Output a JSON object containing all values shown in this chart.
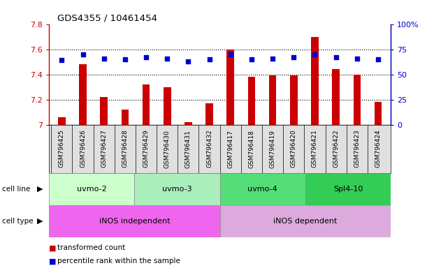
{
  "title": "GDS4355 / 10461454",
  "samples": [
    "GSM796425",
    "GSM796426",
    "GSM796427",
    "GSM796428",
    "GSM796429",
    "GSM796430",
    "GSM796431",
    "GSM796432",
    "GSM796417",
    "GSM796418",
    "GSM796419",
    "GSM796420",
    "GSM796421",
    "GSM796422",
    "GSM796423",
    "GSM796424"
  ],
  "transformed_count": [
    7.06,
    7.48,
    7.22,
    7.12,
    7.32,
    7.3,
    7.02,
    7.17,
    7.6,
    7.38,
    7.39,
    7.39,
    7.7,
    7.44,
    7.4,
    7.18
  ],
  "percentile_rank": [
    64,
    70,
    66,
    65,
    67,
    66,
    63,
    65,
    70,
    65,
    66,
    67,
    70,
    67,
    66,
    65
  ],
  "cell_line_groups": [
    {
      "label": "uvmo-2",
      "start": 0,
      "end": 3,
      "color": "#ccffcc"
    },
    {
      "label": "uvmo-3",
      "start": 4,
      "end": 7,
      "color": "#aaeebb"
    },
    {
      "label": "uvmo-4",
      "start": 8,
      "end": 11,
      "color": "#55dd77"
    },
    {
      "label": "Spl4-10",
      "start": 12,
      "end": 15,
      "color": "#33cc55"
    }
  ],
  "cell_type_groups": [
    {
      "label": "iNOS independent",
      "start": 0,
      "end": 7,
      "color": "#ee66ee"
    },
    {
      "label": "iNOS dependent",
      "start": 8,
      "end": 15,
      "color": "#ddaadd"
    }
  ],
  "ylim_left": [
    7.0,
    7.8
  ],
  "ylim_right": [
    0,
    100
  ],
  "yticks_left": [
    7.0,
    7.2,
    7.4,
    7.6,
    7.8
  ],
  "yticks_right": [
    0,
    25,
    50,
    75,
    100
  ],
  "bar_color": "#cc0000",
  "dot_color": "#0000cc",
  "grid_color": "#000000",
  "left_tick_color": "#cc0000",
  "right_tick_color": "#0000cc",
  "legend_items": [
    {
      "label": "transformed count",
      "color": "#cc0000"
    },
    {
      "label": "percentile rank within the sample",
      "color": "#0000cc"
    }
  ]
}
